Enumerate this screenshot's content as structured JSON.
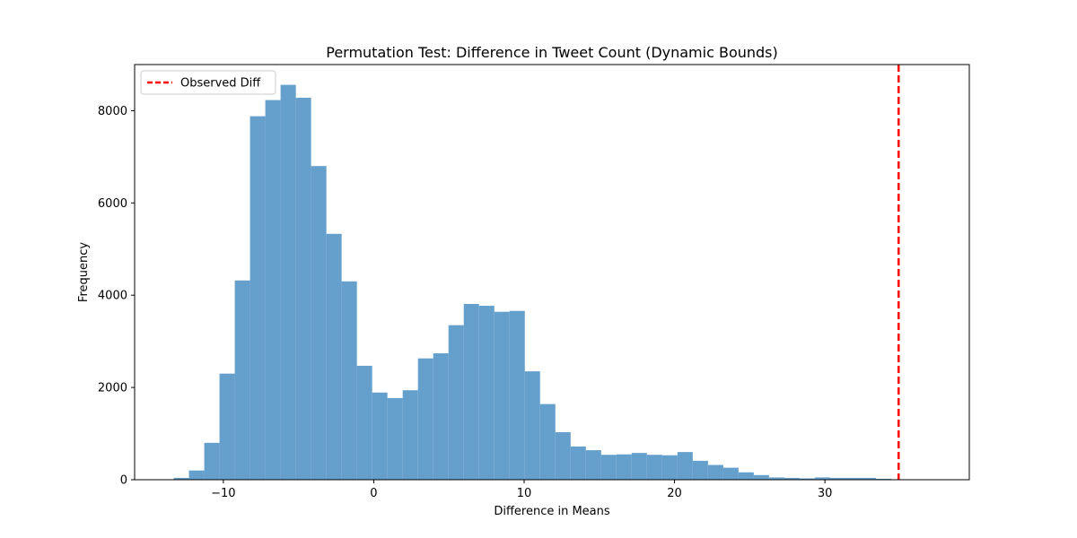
{
  "chart_data": {
    "type": "bar",
    "title": "Permutation Test: Difference in Tweet Count (Dynamic Bounds)",
    "xlabel": "Difference in Means",
    "ylabel": "Frequency",
    "xlim": [
      -15.9,
      39.6
    ],
    "ylim": [
      0,
      9000
    ],
    "xticks": [
      -10,
      0,
      10,
      20,
      30
    ],
    "xtick_labels": [
      "−10",
      "0",
      "10",
      "20",
      "30"
    ],
    "yticks": [
      0,
      2000,
      4000,
      6000,
      8000
    ],
    "ytick_labels": [
      "0",
      "2000",
      "4000",
      "6000",
      "8000"
    ],
    "grid": false,
    "bar_color": "#4a8fc4",
    "bar_alpha": 0.85,
    "bins": {
      "start": -13.3,
      "width": 1.015,
      "values": [
        40,
        200,
        800,
        2300,
        4320,
        7880,
        8230,
        8560,
        8280,
        6800,
        5330,
        4300,
        2470,
        1890,
        1770,
        1940,
        2630,
        2740,
        3350,
        3810,
        3770,
        3640,
        3660,
        2350,
        1640,
        1030,
        720,
        640,
        540,
        550,
        580,
        540,
        530,
        600,
        410,
        320,
        260,
        160,
        100,
        50,
        40,
        30,
        50,
        40,
        40,
        40,
        20
      ]
    },
    "observed_diff": {
      "name": "Observed Diff",
      "x": 34.9,
      "color": "#ff0000"
    },
    "legend": {
      "position": "top-left",
      "entries": [
        "Observed Diff"
      ]
    }
  }
}
